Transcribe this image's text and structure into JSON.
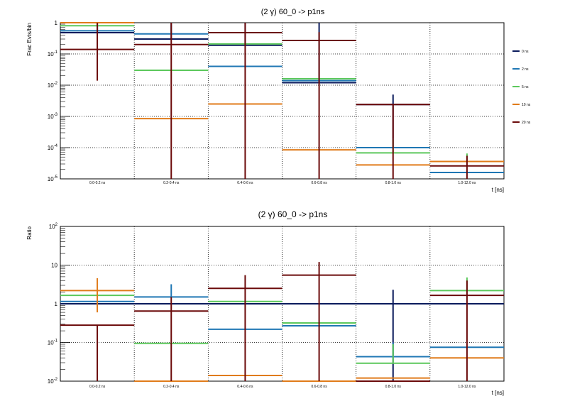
{
  "chart_data": [
    {
      "type": "step",
      "title": "(2 γ) 60_0 -> p1ns",
      "xlabel": "t [ns]",
      "ylabel": "Frac Evts/bin",
      "yscale": "log",
      "ylim": [
        1e-05,
        1
      ],
      "ytick_labels": [
        {
          "base": "10",
          "exp": "-5"
        },
        {
          "base": "10",
          "exp": "-4"
        },
        {
          "base": "10",
          "exp": "-3"
        },
        {
          "base": "10",
          "exp": "-2"
        },
        {
          "base": "10",
          "exp": "-1"
        },
        {
          "base": "1",
          "exp": ""
        }
      ],
      "categories": [
        "0.0-0.2 ns",
        "0.2-0.4 ns",
        "0.4-0.6 ns",
        "0.6-0.8 ns",
        "0.8-1.0 ns",
        "1.0-12.0 ns"
      ],
      "grid": true,
      "legend_position": "right",
      "series": [
        {
          "name": "0 ns",
          "color": "#0a1a5c",
          "values": [
            0.48,
            0.3,
            0.19,
            0.012,
            0.0024,
            1.6e-05
          ],
          "err_hi": [
            1,
            1,
            1,
            1,
            0.005,
            1.6e-05
          ],
          "err_lo": [
            0.48,
            0.3,
            0.19,
            0.012,
            0.0002,
            1.6e-05
          ]
        },
        {
          "name": "2 ns",
          "color": "#1f77b4",
          "values": [
            0.55,
            0.44,
            0.04,
            0.014,
            0.0001,
            1.6e-05
          ],
          "err_hi": [
            1,
            0.85,
            0.04,
            0.014,
            0.0002,
            1.6e-05
          ],
          "err_lo": [
            0.55,
            0.44,
            0.04,
            0.014,
            0.0001,
            1.6e-05
          ]
        },
        {
          "name": "5 ns",
          "color": "#5cc85c",
          "values": [
            0.8,
            0.03,
            0.21,
            0.016,
            6.8e-05,
            3.6e-05
          ],
          "err_hi": [
            0.8,
            0.03,
            0.21,
            0.016,
            0.00018,
            6.5e-05
          ],
          "err_lo": [
            0.8,
            0.03,
            0.21,
            0.016,
            6.8e-05,
            3.6e-05
          ]
        },
        {
          "name": "10 ns",
          "color": "#e07b1a",
          "values": [
            1.0,
            0.00085,
            0.0025,
            8.5e-05,
            2.8e-05,
            3.6e-05
          ],
          "err_hi": [
            1.0,
            0.00085,
            0.0025,
            8.5e-05,
            2.8e-05,
            3.6e-05
          ],
          "err_lo": [
            1.0,
            0.00085,
            0.0025,
            8.5e-05,
            2.8e-05,
            3.6e-05
          ]
        },
        {
          "name": "20 ns",
          "color": "#6b0a0a",
          "values": [
            0.14,
            0.2,
            0.48,
            0.27,
            0.0024,
            2.6e-05
          ],
          "err_hi": [
            1,
            1,
            1,
            0.5,
            0.0024,
            5.5e-05
          ],
          "err_lo": [
            0.014,
            1e-05,
            1e-05,
            1e-05,
            1e-05,
            1e-05
          ]
        }
      ]
    },
    {
      "type": "step",
      "title": "(2 γ) 60_0 -> p1ns",
      "xlabel": "t [ns]",
      "ylabel": "Ratio",
      "yscale": "log",
      "ylim": [
        0.01,
        100
      ],
      "ytick_labels": [
        {
          "base": "10",
          "exp": "-2"
        },
        {
          "base": "10",
          "exp": "-1"
        },
        {
          "base": "1",
          "exp": ""
        },
        {
          "base": "10",
          "exp": ""
        },
        {
          "base": "10",
          "exp": "2"
        }
      ],
      "categories": [
        "0.0-0.2 ns",
        "0.2-0.4 ns",
        "0.4-0.6 ns",
        "0.6-0.8 ns",
        "0.8-1.0 ns",
        "1.0-12.0 ns"
      ],
      "grid": true,
      "series": [
        {
          "name": "0 ns",
          "color": "#0a1a5c",
          "values": [
            1,
            1,
            1,
            1,
            1,
            1
          ],
          "err_hi": [
            1,
            1,
            1,
            1,
            2.3,
            1
          ],
          "err_lo": [
            1,
            1,
            1,
            1,
            0.01,
            1
          ]
        },
        {
          "name": "2 ns",
          "color": "#1f77b4",
          "values": [
            1.15,
            1.5,
            0.22,
            0.27,
            0.043,
            0.075
          ],
          "err_hi": [
            1.15,
            3.2,
            0.22,
            0.27,
            0.1,
            0.075
          ],
          "err_lo": [
            1.15,
            1.5,
            0.22,
            0.27,
            0.043,
            0.075
          ]
        },
        {
          "name": "5 ns",
          "color": "#5cc85c",
          "values": [
            1.65,
            0.095,
            1.15,
            0.32,
            0.029,
            2.2
          ],
          "err_hi": [
            1.65,
            0.095,
            1.15,
            0.32,
            0.09,
            4.8
          ],
          "err_lo": [
            1.65,
            0.095,
            1.15,
            0.32,
            0.029,
            2.2
          ]
        },
        {
          "name": "10 ns",
          "color": "#e07b1a",
          "values": [
            2.2,
            0.01,
            0.014,
            0.01,
            0.012,
            0.04
          ],
          "err_hi": [
            4.6,
            0.01,
            0.014,
            0.01,
            0.012,
            0.04
          ],
          "err_lo": [
            0.6,
            0.01,
            0.014,
            0.01,
            0.012,
            0.04
          ]
        },
        {
          "name": "20 ns",
          "color": "#6b0a0a",
          "values": [
            0.28,
            0.65,
            2.5,
            5.5,
            0.01,
            1.65
          ],
          "err_hi": [
            0.28,
            1.5,
            5.5,
            12,
            0.01,
            4.0
          ],
          "err_lo": [
            0.01,
            0.01,
            0.01,
            0.01,
            0.01,
            0.01
          ]
        }
      ]
    }
  ]
}
